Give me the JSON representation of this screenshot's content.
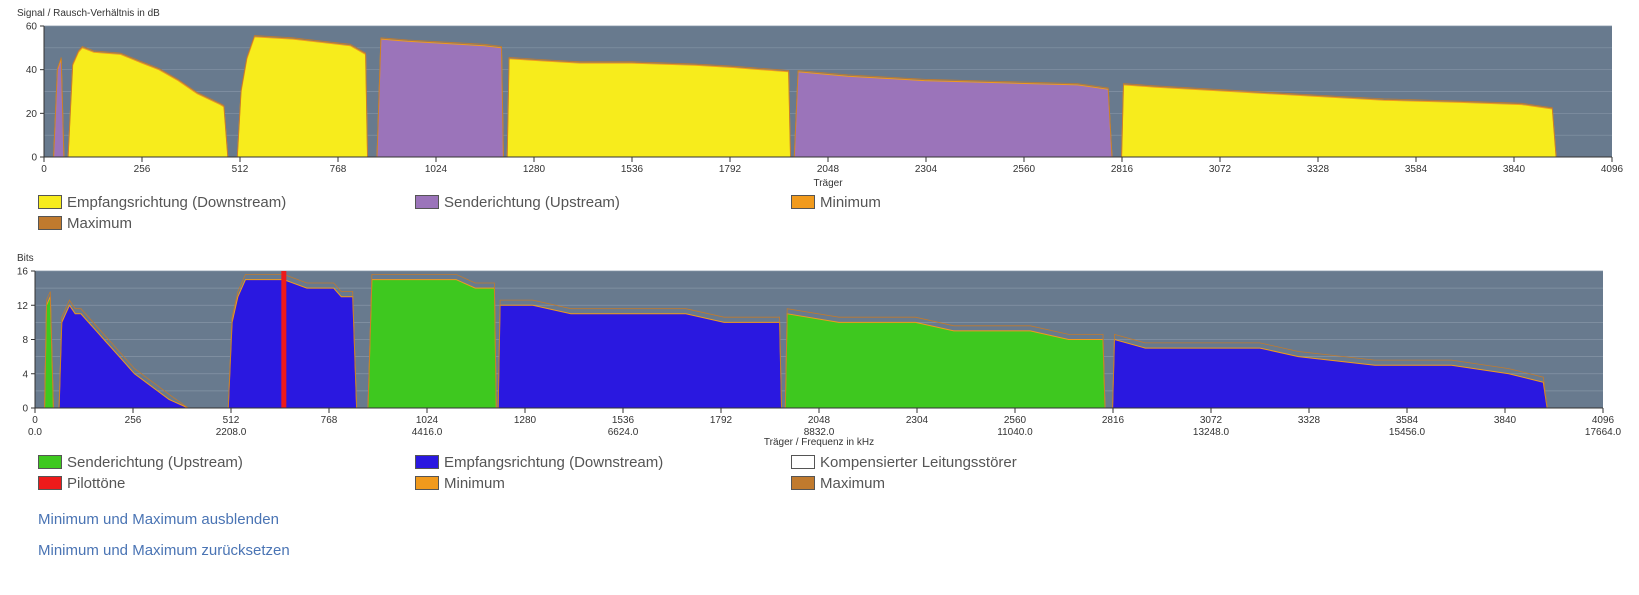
{
  "charts": {
    "snr": {
      "ylabel": "Signal / Rausch-Verhältnis in dB",
      "xlabel": "Träger",
      "x_ticks": [
        "0",
        "256",
        "512",
        "768",
        "1024",
        "1280",
        "1536",
        "1792",
        "2048",
        "2304",
        "2560",
        "2816",
        "3072",
        "3328",
        "3584",
        "3840",
        "4096"
      ],
      "y_ticks": [
        "0",
        "20",
        "40",
        "60"
      ],
      "legend": [
        {
          "label": "Empfangsrichtung (Downstream)",
          "color": "#f7ec1c"
        },
        {
          "label": "Senderichtung (Upstream)",
          "color": "#9b74ba"
        },
        {
          "label": "Minimum",
          "color": "#f19a1c"
        },
        {
          "label": "Maximum",
          "color": "#c07a2e"
        }
      ]
    },
    "bits": {
      "ylabel": "Bits",
      "xlabel": "Träger / Frequenz in kHz",
      "x_ticks": [
        "0",
        "256",
        "512",
        "768",
        "1024",
        "1280",
        "1536",
        "1792",
        "2048",
        "2304",
        "2560",
        "2816",
        "3072",
        "3328",
        "3584",
        "3840",
        "4096"
      ],
      "x_ticks2": [
        "0.0",
        "2208.0",
        "4416.0",
        "6624.0",
        "8832.0",
        "11040.0",
        "13248.0",
        "15456.0",
        "17664.0"
      ],
      "y_ticks": [
        "0",
        "4",
        "8",
        "12",
        "16"
      ],
      "legend": [
        {
          "label": "Senderichtung (Upstream)",
          "color": "#3ec81f"
        },
        {
          "label": "Empfangsrichtung (Downstream)",
          "color": "#2a18e0"
        },
        {
          "label": "Kompensierter Leitungsstörer",
          "color": "#ffffff"
        },
        {
          "label": "Pilottöne",
          "color": "#ee1a1a"
        },
        {
          "label": "Minimum",
          "color": "#f19a1c"
        },
        {
          "label": "Maximum",
          "color": "#c07a2e"
        }
      ]
    }
  },
  "links": {
    "hide_minmax": "Minimum und Maximum ausblenden",
    "reset_minmax": "Minimum und Maximum zurücksetzen"
  },
  "chart_data": [
    {
      "type": "area",
      "xlabel": "Träger",
      "ylabel": "Signal / Rausch-Verhältnis in dB",
      "xlim": [
        0,
        4096
      ],
      "ylim": [
        0,
        60
      ],
      "grid": true,
      "series": [
        {
          "name": "Senderichtung (Upstream)",
          "color": "#9b74ba",
          "segments": [
            [
              [
                25,
                0
              ],
              [
                35,
                40
              ],
              [
                45,
                45
              ],
              [
                52,
                0
              ]
            ],
            [
              [
                870,
                0
              ],
              [
                880,
                54
              ],
              [
                950,
                53
              ],
              [
                1050,
                52
              ],
              [
                1150,
                51
              ],
              [
                1195,
                50
              ],
              [
                1200,
                0
              ]
            ],
            [
              [
                1960,
                0
              ],
              [
                1970,
                39
              ],
              [
                2100,
                37
              ],
              [
                2300,
                35
              ],
              [
                2500,
                34
              ],
              [
                2700,
                33
              ],
              [
                2780,
                31
              ],
              [
                2790,
                0
              ]
            ]
          ]
        },
        {
          "name": "Empfangsrichtung (Downstream)",
          "color": "#f7ec1c",
          "segments": [
            [
              [
                63,
                0
              ],
              [
                75,
                42
              ],
              [
                90,
                48
              ],
              [
                100,
                50
              ],
              [
                130,
                48
              ],
              [
                200,
                47
              ],
              [
                256,
                43
              ],
              [
                300,
                40
              ],
              [
                350,
                35
              ],
              [
                400,
                29
              ],
              [
                460,
                24
              ],
              [
                470,
                23
              ],
              [
                480,
                0
              ]
            ],
            [
              [
                505,
                0
              ],
              [
                515,
                30
              ],
              [
                530,
                45
              ],
              [
                550,
                55
              ],
              [
                650,
                54
              ],
              [
                750,
                52
              ],
              [
                800,
                51
              ],
              [
                840,
                47
              ],
              [
                845,
                0
              ]
            ],
            [
              [
                1210,
                0
              ],
              [
                1215,
                45
              ],
              [
                1300,
                44
              ],
              [
                1400,
                43
              ],
              [
                1536,
                43
              ],
              [
                1700,
                42
              ],
              [
                1800,
                41
              ],
              [
                1945,
                39
              ],
              [
                1950,
                0
              ]
            ],
            [
              [
                2815,
                0
              ],
              [
                2820,
                33
              ],
              [
                2900,
                32
              ],
              [
                3100,
                30
              ],
              [
                3300,
                28
              ],
              [
                3500,
                26
              ],
              [
                3700,
                25
              ],
              [
                3860,
                24
              ],
              [
                3940,
                22
              ],
              [
                3950,
                0
              ]
            ]
          ]
        }
      ]
    },
    {
      "type": "area",
      "xlabel": "Träger / Frequenz in kHz",
      "ylabel": "Bits",
      "xlim": [
        0,
        4096
      ],
      "ylim": [
        0,
        16
      ],
      "grid": true,
      "series": [
        {
          "name": "Senderichtung (Upstream)",
          "color": "#3ec81f",
          "segments": [
            [
              [
                25,
                0
              ],
              [
                30,
                12
              ],
              [
                40,
                13
              ],
              [
                48,
                0
              ]
            ],
            [
              [
                870,
                0
              ],
              [
                880,
                15
              ],
              [
                1000,
                15
              ],
              [
                1100,
                15
              ],
              [
                1150,
                14
              ],
              [
                1200,
                14
              ],
              [
                1205,
                0
              ]
            ],
            [
              [
                1960,
                0
              ],
              [
                1965,
                11
              ],
              [
                2100,
                10
              ],
              [
                2300,
                10
              ],
              [
                2400,
                9
              ],
              [
                2600,
                9
              ],
              [
                2700,
                8
              ],
              [
                2790,
                8
              ],
              [
                2795,
                0
              ]
            ]
          ]
        },
        {
          "name": "Empfangsrichtung (Downstream)",
          "color": "#2a18e0",
          "segments": [
            [
              [
                63,
                0
              ],
              [
                70,
                10
              ],
              [
                80,
                11
              ],
              [
                90,
                12
              ],
              [
                105,
                11
              ],
              [
                120,
                11
              ],
              [
                140,
                10
              ],
              [
                160,
                9
              ],
              [
                180,
                8
              ],
              [
                200,
                7
              ],
              [
                220,
                6
              ],
              [
                240,
                5
              ],
              [
                260,
                4
              ],
              [
                290,
                3
              ],
              [
                320,
                2
              ],
              [
                350,
                1
              ],
              [
                400,
                0
              ]
            ],
            [
              [
                505,
                0
              ],
              [
                515,
                10
              ],
              [
                530,
                13
              ],
              [
                550,
                15
              ],
              [
                650,
                15
              ],
              [
                710,
                14
              ],
              [
                780,
                14
              ],
              [
                800,
                13
              ],
              [
                830,
                13
              ],
              [
                840,
                0
              ]
            ],
            [
              [
                1210,
                0
              ],
              [
                1215,
                12
              ],
              [
                1300,
                12
              ],
              [
                1400,
                11
              ],
              [
                1500,
                11
              ],
              [
                1600,
                11
              ],
              [
                1700,
                11
              ],
              [
                1800,
                10
              ],
              [
                1945,
                10
              ],
              [
                1950,
                0
              ]
            ],
            [
              [
                2815,
                0
              ],
              [
                2820,
                8
              ],
              [
                2900,
                7
              ],
              [
                3000,
                7
              ],
              [
                3100,
                7
              ],
              [
                3200,
                7
              ],
              [
                3300,
                6
              ],
              [
                3500,
                5
              ],
              [
                3700,
                5
              ],
              [
                3850,
                4
              ],
              [
                3940,
                3
              ],
              [
                3950,
                0
              ]
            ]
          ]
        },
        {
          "name": "Pilottöne",
          "color": "#ee1a1a",
          "markers": [
            [
              650,
              16
            ]
          ]
        }
      ]
    }
  ]
}
